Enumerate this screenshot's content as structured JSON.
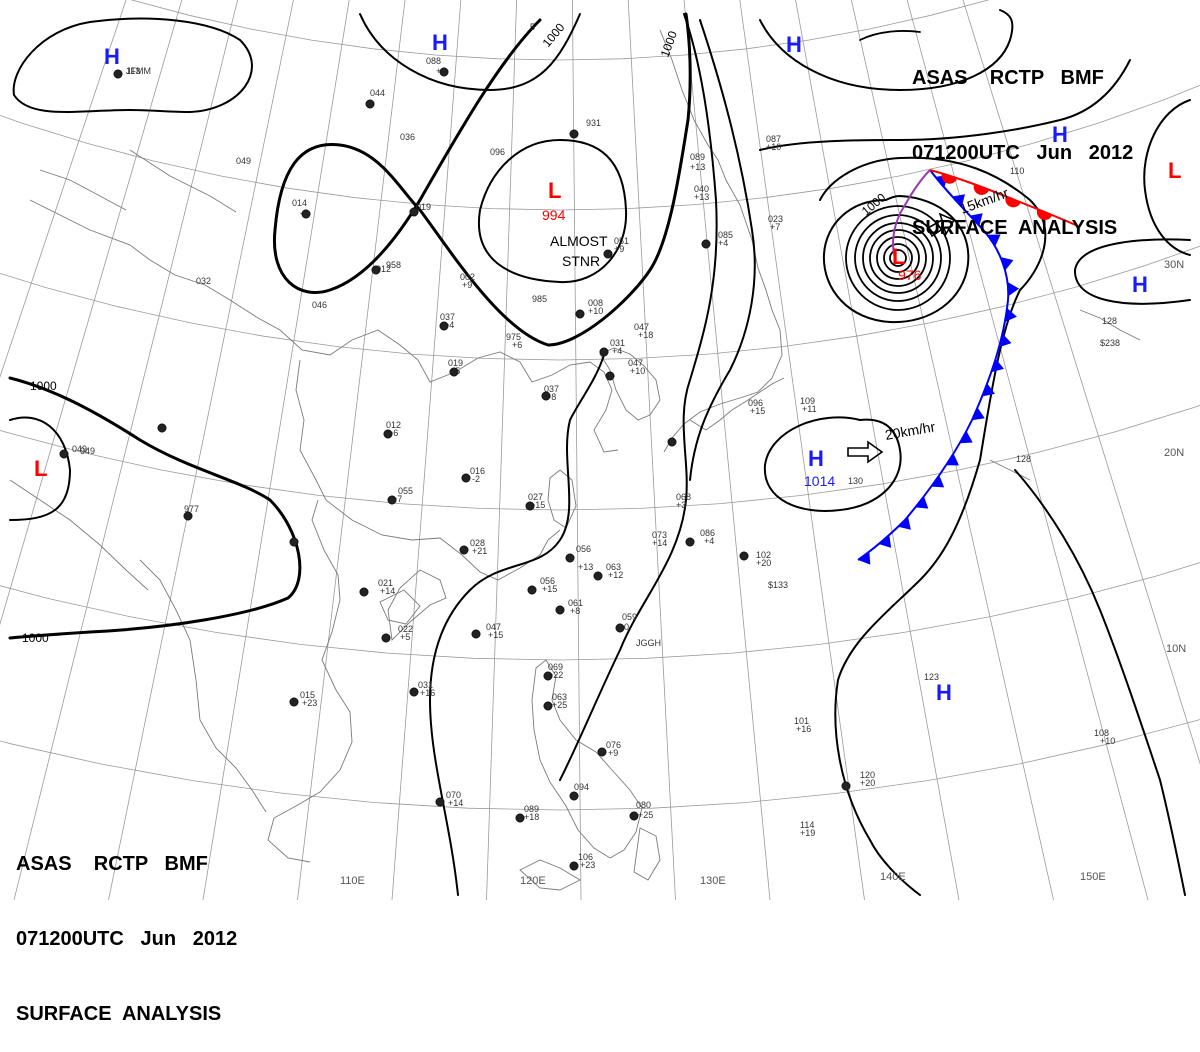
{
  "header": {
    "line1": "ASAS    RCTP   BMF",
    "line2": "071200UTC   Jun   2012",
    "line3": "SURFACE  ANALYSIS"
  },
  "colors": {
    "high": "#1a1aff",
    "low": "#ff0000",
    "front_cold": "#0000ff",
    "front_warm": "#ff0000",
    "isobar": "#000000",
    "grid": "#999999",
    "coast": "#777777"
  },
  "longitude_labels": [
    "110E",
    "120E",
    "130E",
    "140E",
    "150E"
  ],
  "latitude_labels": [
    "30N",
    "20N",
    "10N"
  ],
  "isobar_labels": [
    "1000",
    "1000",
    "1000",
    "1000",
    "1000"
  ],
  "pressure_centers": [
    {
      "type": "H",
      "value": ""
    },
    {
      "type": "H",
      "value": ""
    },
    {
      "type": "H",
      "value": ""
    },
    {
      "type": "H",
      "value": ""
    },
    {
      "type": "H",
      "value": ""
    },
    {
      "type": "H",
      "value": "1014"
    },
    {
      "type": "H",
      "value": ""
    },
    {
      "type": "L",
      "value": "994"
    },
    {
      "type": "L",
      "value": "976"
    },
    {
      "type": "L",
      "value": ""
    },
    {
      "type": "L",
      "value": ""
    }
  ],
  "annotations": {
    "stationary_1": "ALMOST",
    "stationary_2": "STNR",
    "motion_low": "15km/hr",
    "motion_high": "20km/hr"
  },
  "station_labels": [
    "113",
    "088",
    "+3",
    "044",
    "036",
    "049",
    "014",
    "-2",
    "019",
    "012",
    "958",
    "002",
    "+9",
    "037",
    "+4",
    "985",
    "975",
    "+6",
    "019",
    "+5",
    "012",
    "+6",
    "016",
    "-2",
    "055",
    "+7",
    "027",
    "+15",
    "028",
    "+21",
    "021",
    "+14",
    "022",
    "+5",
    "047",
    "+15",
    "031",
    "+16",
    "015",
    "+23",
    "056",
    "+13",
    "063",
    "+12",
    "056",
    "+15",
    "061",
    "+8",
    "059",
    "0",
    "073",
    "+14",
    "086",
    "+4",
    "068",
    "+3",
    "102",
    "+20",
    "069",
    "+22",
    "063",
    "+25",
    "076",
    "+9",
    "094",
    "070",
    "+14",
    "089",
    "+18",
    "080",
    "+25",
    "106",
    "+23",
    "114",
    "+19",
    "120",
    "+20",
    "101",
    "+16",
    "123",
    "108",
    "+10",
    "128",
    "110",
    "128",
    "087",
    "+10",
    "089",
    "+13",
    "040",
    "+13",
    "023",
    "+7",
    "085",
    "+4",
    "051",
    "+9",
    "008",
    "+10",
    "047",
    "+18",
    "031",
    "+4",
    "047",
    "+10",
    "037",
    "+8",
    "096",
    "+15",
    "109",
    "+11",
    "130",
    "049",
    "977",
    "949",
    "032",
    "046",
    "931",
    "096",
    "5",
    "$133",
    "$238",
    "JGGH",
    "JFMM"
  ]
}
